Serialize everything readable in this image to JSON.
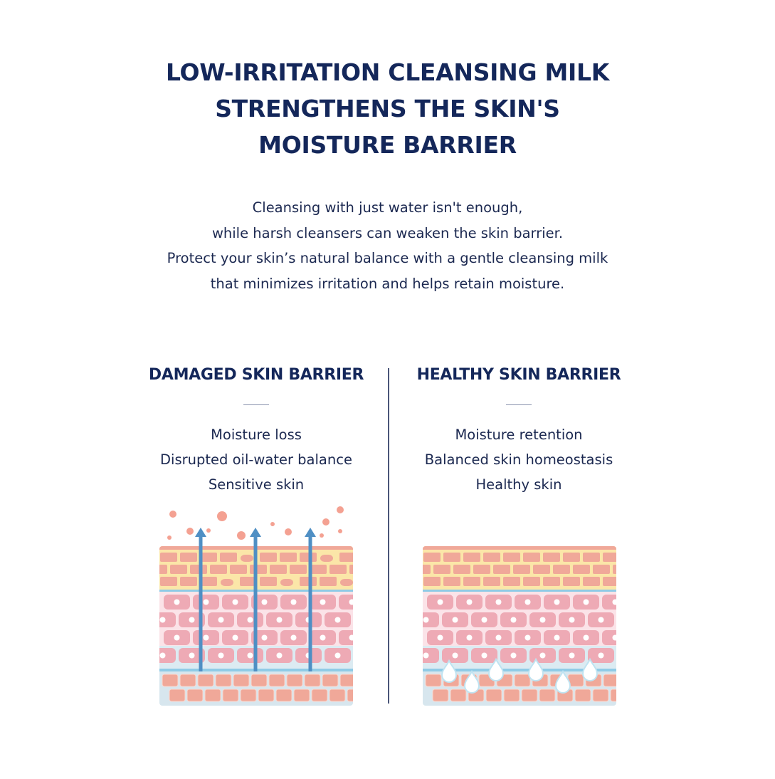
{
  "title": [
    "LOW-IRRITATION CLEANSING MILK",
    "STRENGTHENS THE SKIN'S",
    "MOISTURE BARRIER"
  ],
  "description": [
    "Cleansing with just water isn't enough,",
    "while harsh cleansers can weaken the skin barrier.",
    "Protect your skin’s natural balance with a gentle cleansing milk",
    "that minimizes irritation and helps retain moisture."
  ],
  "comparison": {
    "damaged": {
      "heading": "DAMAGED SKIN BARRIER",
      "items": [
        "Moisture loss",
        "Disrupted oil-water balance",
        "Sensitive skin"
      ],
      "illustration": "skin-layers-with-moisture-escaping-arrows"
    },
    "healthy": {
      "heading": "HEALTHY SKIN BARRIER",
      "items": [
        "Moisture retention",
        "Balanced skin homeostasis",
        "Healthy skin"
      ],
      "illustration": "skin-layers-with-retained-water-droplets"
    }
  },
  "colors": {
    "text": "#14275a",
    "brick": "#f0a899",
    "cell": "#eeaab5",
    "corneum_bg": "#fbe6a8",
    "arrow": "#4f8fc4",
    "line": "#8fcbe6",
    "particle": "#f4a192"
  }
}
